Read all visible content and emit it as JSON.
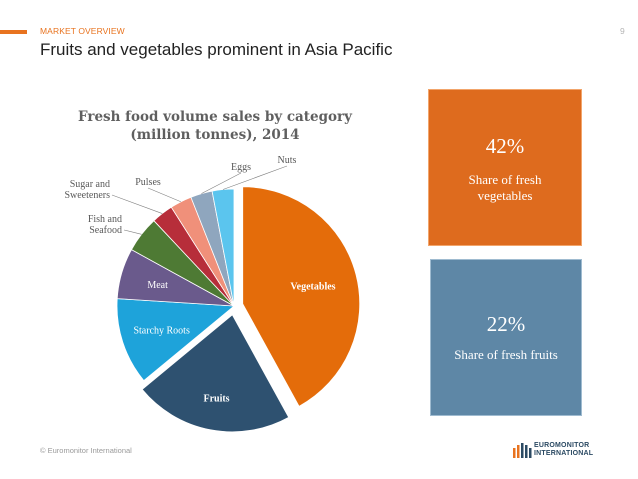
{
  "header": {
    "section_label": "MARKET OVERVIEW",
    "page_number": "9",
    "title": "Fruits and vegetables prominent in Asia Pacific"
  },
  "chart_data": {
    "type": "pie",
    "title": "Fresh food volume  sales by category (million tonnes), 2014",
    "slices": [
      {
        "label": "Vegetables",
        "value": 42,
        "color": "#E46C0A",
        "exploded": true
      },
      {
        "label": "Fruits",
        "value": 22,
        "color": "#2E5170",
        "exploded": true
      },
      {
        "label": "Starchy Roots",
        "value": 12,
        "color": "#1EA3DA",
        "exploded": false
      },
      {
        "label": "Meat",
        "value": 7,
        "color": "#6A5A8C",
        "exploded": false
      },
      {
        "label": "Fish and Seafood",
        "value": 5,
        "color": "#4E7A34",
        "exploded": false
      },
      {
        "label": "Sugar and Sweeteners",
        "value": 3,
        "color": "#B72E3A",
        "exploded": false
      },
      {
        "label": "Pulses",
        "value": 3,
        "color": "#F0907A",
        "exploded": false
      },
      {
        "label": "Eggs",
        "value": 3,
        "color": "#8FA6BE",
        "exploded": false
      },
      {
        "label": "Nuts",
        "value": 3,
        "color": "#5BC5EE",
        "exploded": false
      }
    ]
  },
  "stats": {
    "vegetables": {
      "percent": "42%",
      "line1": "Share of fresh",
      "line2": "vegetables",
      "color": "#DE6B1E"
    },
    "fruits": {
      "percent": "22%",
      "line1": "Share of fresh fruits",
      "color": "#5E87A6"
    }
  },
  "footer": {
    "copyright": "© Euromonitor International",
    "logo_line1": "EUROMONITOR",
    "logo_line2": "INTERNATIONAL"
  }
}
